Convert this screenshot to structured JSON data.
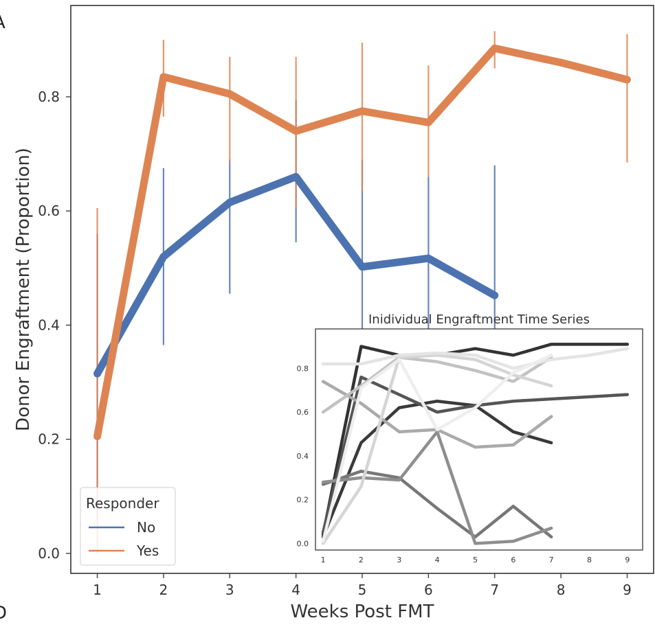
{
  "panel_labels": {
    "top": "A",
    "bottom": "D"
  },
  "colors": {
    "no": "#4c72b0",
    "yes": "#dd8452",
    "frame": "#333333",
    "inset_frame": "#444444",
    "text": "#333333",
    "inset_grays": [
      "#333333",
      "#555555",
      "#777777",
      "#999999",
      "#bbbbbb",
      "#d5d5d5",
      "#ececec"
    ]
  },
  "chart_data": [
    {
      "type": "line",
      "title": "",
      "xlabel": "Weeks Post FMT",
      "ylabel": "Donor Engraftment (Proportion)",
      "xlim": [
        0.6,
        9.4
      ],
      "ylim": [
        -0.035,
        0.96
      ],
      "x_ticks": [
        1,
        2,
        3,
        4,
        5,
        6,
        7,
        8,
        9
      ],
      "y_ticks": [
        0.0,
        0.2,
        0.4,
        0.6,
        0.8
      ],
      "y_tick_labels": [
        "0.0",
        "0.2",
        "0.4",
        "0.6",
        "0.8"
      ],
      "grid": false,
      "legend": {
        "title": "Responder",
        "placement": "lower-left",
        "entries": [
          "No",
          "Yes"
        ]
      },
      "series": [
        {
          "name": "No",
          "color": "#4c72b0",
          "x": [
            1,
            2,
            3,
            4,
            5,
            6,
            7
          ],
          "y": [
            0.315,
            0.52,
            0.615,
            0.66,
            0.502,
            0.517,
            0.452
          ],
          "ci_low": [
            0.06,
            0.365,
            0.455,
            0.545,
            0.33,
            0.33,
            0.195
          ],
          "ci_high": [
            0.56,
            0.675,
            0.69,
            0.795,
            0.69,
            0.66,
            0.68
          ]
        },
        {
          "name": "Yes",
          "color": "#dd8452",
          "x": [
            1,
            2,
            3,
            4,
            5,
            6,
            7,
            8,
            9
          ],
          "y": [
            0.205,
            0.835,
            0.805,
            0.74,
            0.775,
            0.755,
            0.885,
            0.86,
            0.83
          ],
          "ci_low": [
            0.0,
            0.765,
            0.685,
            0.605,
            0.635,
            0.66,
            0.85,
            null,
            0.685
          ],
          "ci_high": [
            0.605,
            0.9,
            0.87,
            0.87,
            0.895,
            0.855,
            0.915,
            null,
            0.91
          ]
        }
      ]
    },
    {
      "type": "line",
      "title": "Inidividual Engraftment Time Series",
      "xlabel": "",
      "ylabel": "",
      "xlim": [
        0.8,
        9.4
      ],
      "ylim": [
        -0.03,
        0.98
      ],
      "x_ticks": [
        1,
        2,
        3,
        4,
        5,
        6,
        7,
        8,
        9
      ],
      "y_ticks": [
        0.0,
        0.2,
        0.4,
        0.6,
        0.8
      ],
      "y_tick_labels": [
        "0.0",
        "0.2",
        "0.4",
        "0.6",
        "0.8"
      ],
      "grid": false,
      "series": [
        {
          "color": "#333333",
          "x": [
            1,
            2,
            3,
            4,
            5,
            6,
            7,
            8,
            9
          ],
          "y": [
            0.04,
            0.9,
            0.86,
            0.86,
            0.89,
            0.86,
            0.91,
            0.91,
            0.91
          ]
        },
        {
          "color": "#3a3a3a",
          "x": [
            1,
            2,
            3,
            4,
            5,
            6,
            7
          ],
          "y": [
            0.03,
            0.46,
            0.62,
            0.65,
            0.63,
            0.51,
            0.46
          ]
        },
        {
          "color": "#555555",
          "x": [
            1,
            2,
            3,
            4,
            5,
            6,
            7,
            8,
            9
          ],
          "y": [
            0.05,
            0.76,
            0.68,
            0.6,
            0.63,
            0.65,
            0.66,
            0.67,
            0.68
          ]
        },
        {
          "color": "#777777",
          "x": [
            1,
            2,
            3,
            4,
            5,
            6,
            7
          ],
          "y": [
            0.27,
            0.33,
            0.3,
            0.16,
            0.03,
            0.17,
            0.03
          ]
        },
        {
          "color": "#8e8e8e",
          "x": [
            1,
            2,
            3,
            4,
            5,
            6,
            7
          ],
          "y": [
            0.28,
            0.3,
            0.29,
            0.51,
            0.0,
            0.01,
            0.07
          ]
        },
        {
          "color": "#aaaaaa",
          "x": [
            1,
            2,
            3,
            4,
            5,
            6,
            7
          ],
          "y": [
            0.74,
            0.64,
            0.51,
            0.52,
            0.44,
            0.45,
            0.58
          ]
        },
        {
          "color": "#c2c2c2",
          "x": [
            1,
            2,
            3,
            4,
            5,
            6,
            7
          ],
          "y": [
            0.6,
            0.72,
            0.85,
            0.83,
            0.79,
            0.74,
            0.85
          ]
        },
        {
          "color": "#d5d5d5",
          "x": [
            1,
            2,
            3,
            4,
            5,
            6,
            7
          ],
          "y": [
            0.0,
            0.26,
            0.85,
            0.86,
            0.84,
            0.77,
            0.72
          ]
        },
        {
          "color": "#e4e4e4",
          "x": [
            1,
            2,
            3,
            4,
            5,
            6,
            7,
            8,
            9
          ],
          "y": [
            0.82,
            0.82,
            0.86,
            0.87,
            0.86,
            0.8,
            0.84,
            0.86,
            0.89
          ]
        },
        {
          "color": "#eeeeee",
          "x": [
            1,
            2,
            3,
            4,
            5,
            6,
            7
          ],
          "y": [
            0.01,
            0.71,
            0.84,
            0.52,
            0.62,
            0.78,
            0.86
          ]
        }
      ]
    }
  ]
}
